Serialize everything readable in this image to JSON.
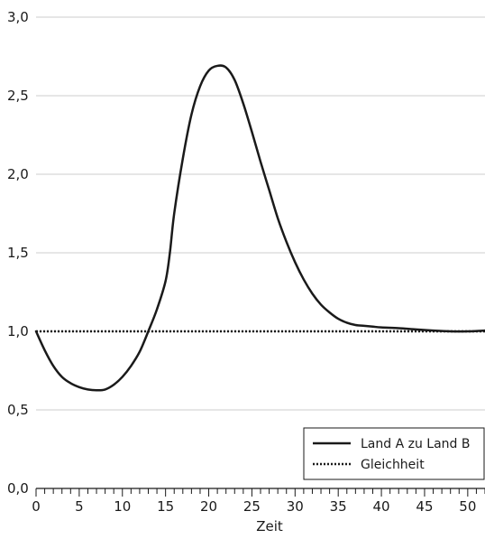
{
  "chart_data": {
    "type": "line",
    "title": "",
    "xlabel": "Zeit",
    "ylabel": "",
    "xlim": [
      0,
      52
    ],
    "ylim": [
      0,
      3.0
    ],
    "x_major_ticks": [
      0,
      5,
      10,
      15,
      20,
      25,
      30,
      35,
      40,
      45,
      50
    ],
    "x_minor_ticks_every": 1,
    "y_ticks": [
      0.0,
      0.5,
      1.0,
      1.5,
      2.0,
      2.5,
      3.0
    ],
    "y_tick_labels": [
      "0,0",
      "0,5",
      "1,0",
      "1,5",
      "2,0",
      "2,5",
      "3,0"
    ],
    "x_tick_labels": [
      "0",
      "5",
      "10",
      "15",
      "20",
      "25",
      "30",
      "35",
      "40",
      "45",
      "50"
    ],
    "grid": "horizontal",
    "legend_position": "bottom-right",
    "series": [
      {
        "name": "Land A zu Land B",
        "style": "solid",
        "color": "#1a1a1a",
        "x": [
          0,
          1,
          2,
          3,
          4,
          5,
          6,
          7,
          8,
          9,
          10,
          11,
          12,
          13,
          14,
          15,
          15.5,
          16,
          17,
          18,
          19,
          20,
          21,
          22,
          23,
          24,
          25,
          26,
          27,
          28,
          29,
          30,
          31,
          32,
          33,
          34,
          35,
          36,
          37,
          38,
          39,
          40,
          42,
          44,
          46,
          48,
          50,
          52
        ],
        "y": [
          1.0,
          0.88,
          0.78,
          0.71,
          0.67,
          0.645,
          0.63,
          0.625,
          0.63,
          0.66,
          0.71,
          0.78,
          0.87,
          1.0,
          1.14,
          1.32,
          1.5,
          1.75,
          2.1,
          2.38,
          2.56,
          2.66,
          2.69,
          2.68,
          2.6,
          2.45,
          2.27,
          2.08,
          1.9,
          1.72,
          1.57,
          1.44,
          1.33,
          1.24,
          1.17,
          1.12,
          1.08,
          1.055,
          1.04,
          1.035,
          1.03,
          1.025,
          1.02,
          1.012,
          1.005,
          1.0,
          1.0,
          1.005
        ]
      },
      {
        "name": "Gleichheit",
        "style": "dotted",
        "color": "#1a1a1a",
        "x": [
          0,
          52
        ],
        "y": [
          1.0,
          1.0
        ]
      }
    ]
  },
  "colors": {
    "axis": "#1a1a1a",
    "grid": "#cccccc",
    "background": "#ffffff"
  }
}
